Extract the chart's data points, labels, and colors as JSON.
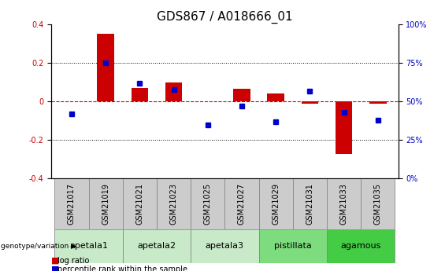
{
  "title": "GDS867 / A018666_01",
  "samples": [
    "GSM21017",
    "GSM21019",
    "GSM21021",
    "GSM21023",
    "GSM21025",
    "GSM21027",
    "GSM21029",
    "GSM21031",
    "GSM21033",
    "GSM21035"
  ],
  "log_ratio": [
    0.0,
    0.35,
    0.07,
    0.1,
    0.0,
    0.065,
    0.04,
    -0.01,
    -0.27,
    -0.01
  ],
  "percentile_rank": [
    42,
    75,
    62,
    58,
    35,
    47,
    37,
    57,
    43,
    38
  ],
  "groups": [
    {
      "label": "apetala1",
      "indices": [
        0,
        1
      ],
      "color": "#c8eac8"
    },
    {
      "label": "apetala2",
      "indices": [
        2,
        3
      ],
      "color": "#c8eac8"
    },
    {
      "label": "apetala3",
      "indices": [
        4,
        5
      ],
      "color": "#c8eac8"
    },
    {
      "label": "pistillata",
      "indices": [
        6,
        7
      ],
      "color": "#7ddc7d"
    },
    {
      "label": "agamous",
      "indices": [
        8,
        9
      ],
      "color": "#44cc44"
    }
  ],
  "ylim": [
    -0.4,
    0.4
  ],
  "yticks_left": [
    -0.4,
    -0.2,
    0.0,
    0.2,
    0.4
  ],
  "ytick_labels_left": [
    "-0.4",
    "-0.2",
    "0",
    "0.2",
    "0.4"
  ],
  "right_yticks_pct": [
    0,
    25,
    50,
    75,
    100
  ],
  "bar_color_red": "#cc0000",
  "bar_color_blue": "#0000cc",
  "zero_line_color": "#cc0000",
  "grid_color": "#000000",
  "bg_color": "#ffffff",
  "sample_box_color": "#cccccc",
  "title_fontsize": 11,
  "tick_fontsize": 7,
  "label_fontsize": 8,
  "bar_width": 0.5
}
